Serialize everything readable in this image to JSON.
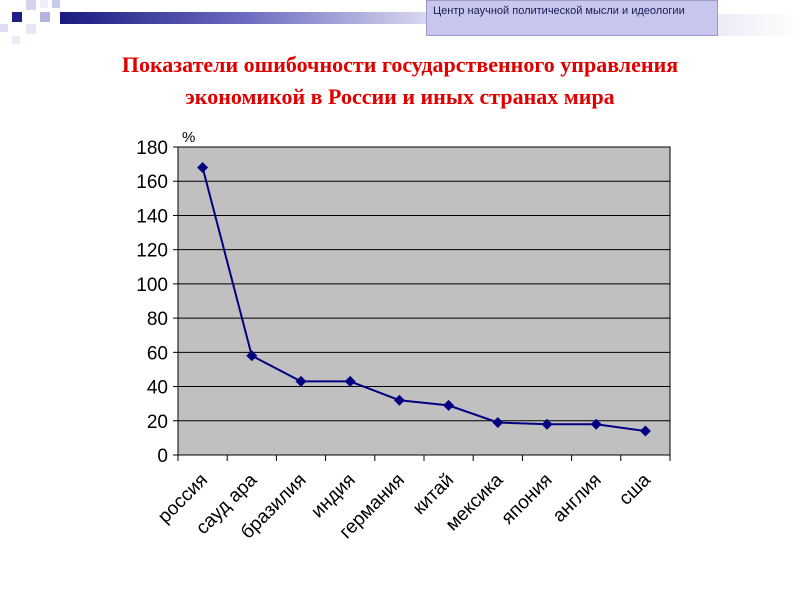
{
  "header": {
    "org_name": "Центр научной политической мысли и идеологии"
  },
  "slide": {
    "title_line1": "Показатели ошибочности государственного управления",
    "title_line2": "экономикой в России и иных странах мира"
  },
  "chart_data": {
    "type": "line",
    "title": "",
    "ylabel": "%",
    "xlabel": "",
    "categories": [
      "россия",
      "сауд ара",
      "бразилия",
      "индия",
      "германия",
      "китай",
      "мексика",
      "япония",
      "англия",
      "сша"
    ],
    "series": [
      {
        "values": [
          168,
          58,
          43,
          43,
          32,
          29,
          19,
          18,
          18,
          14
        ]
      }
    ],
    "ylim": [
      0,
      180
    ],
    "yticks": [
      0,
      20,
      40,
      60,
      80,
      100,
      120,
      140,
      160,
      180
    ],
    "grid": true,
    "legend": "none",
    "colors": {
      "line": "#000080",
      "plot_bg": "#c0c0c0"
    }
  }
}
